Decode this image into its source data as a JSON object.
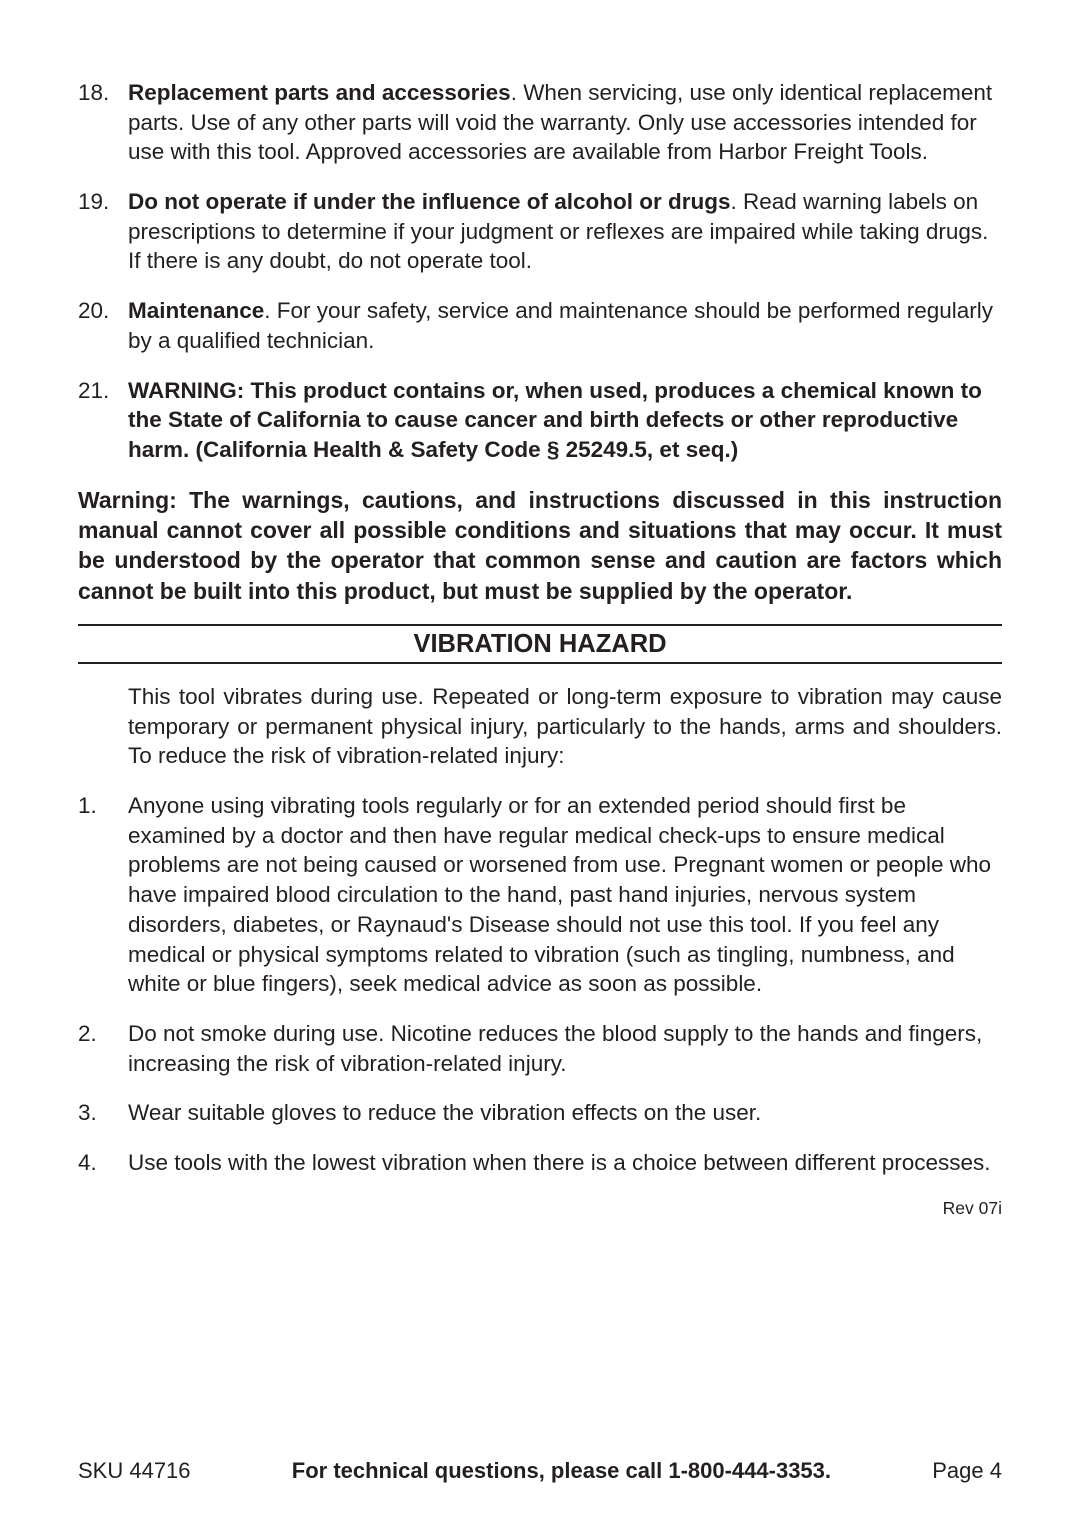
{
  "list1": [
    {
      "num": "18.",
      "bold": "Replacement parts and accessories",
      "rest": ".  When servicing, use only identical replacement parts. Use of any other parts will void the warranty. Only use accessories intended for use with this tool. Approved accessories are available from Harbor Freight Tools."
    },
    {
      "num": "19.",
      "bold": "Do not operate if under the influence of alcohol or drugs",
      "rest": ".  Read warning labels on prescriptions to determine if your judgment or reflexes are impaired while taking drugs. If there is any doubt, do not operate tool."
    },
    {
      "num": "20.",
      "bold": "Maintenance",
      "rest": ".  For your safety, service and maintenance should be performed regularly by a qualified technician."
    },
    {
      "num": "21.",
      "bold": "WARNING: This product contains or, when used, produces a chemical known to the State of California to cause cancer and birth defects or other reproductive harm.  (California Health & Safety Code §  25249.5, et seq.)",
      "rest": ""
    }
  ],
  "warning_para": "Warning: The warnings, cautions, and instructions discussed in this instruction manual cannot cover all possible conditions and situations that may occur. It must be understood by the operator that common sense and caution are factors which cannot be built into this product, but must be supplied by the operator.",
  "section_heading": "VIBRATION HAZARD",
  "intro_para": "This tool vibrates during use.  Repeated or long-term exposure to vibration may cause temporary or permanent physical injury, particularly to the hands, arms and shoulders.  To reduce the risk of vibration-related injury:",
  "list2": [
    {
      "num": "1.",
      "text": "Anyone using vibrating tools regularly or for an extended period should first be examined by a doctor and then have regular medical check-ups to ensure medical problems are not being caused or worsened from use.  Pregnant women or people who have impaired blood circulation to the hand, past hand injuries, nervous system disorders, diabetes, or Raynaud's Disease should not use this tool.  If you feel any medical or physical symptoms related to vibration (such as tingling, numbness, and white or blue fingers), seek medical advice as soon as possible."
    },
    {
      "num": "2.",
      "text": "Do not smoke during use.  Nicotine reduces the blood supply to the hands and fingers, increasing the risk of vibration-related injury."
    },
    {
      "num": "3.",
      "text": "Wear suitable gloves to reduce the vibration effects on the user."
    },
    {
      "num": "4.",
      "text": "Use tools with the lowest vibration when there is a choice between different processes."
    }
  ],
  "rev": "Rev 07i",
  "footer": {
    "sku": "SKU 44716",
    "center": "For technical questions, please call 1-800-444-3353.",
    "page": "Page 4"
  }
}
